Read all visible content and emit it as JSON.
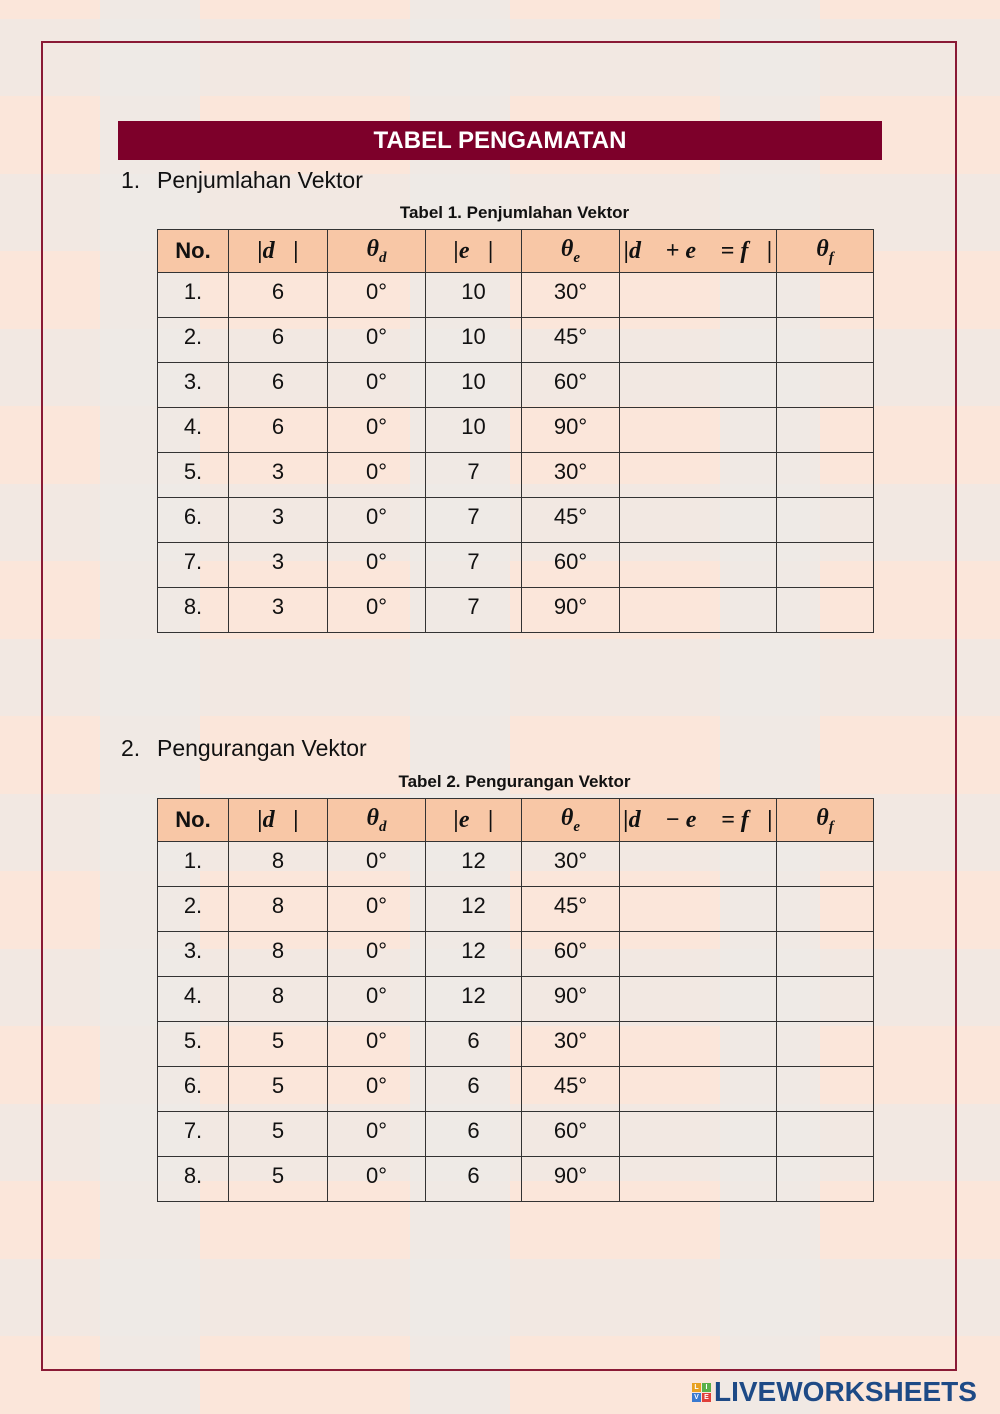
{
  "title": "TABEL PENGAMATAN",
  "sections": [
    {
      "number": "1.",
      "heading": "Penjumlahan Vektor",
      "caption": "Tabel 1. Penjumlahan Vektor",
      "headers": [
        "No.",
        "|d⃗|",
        "θ",
        "d",
        "|e⃗|",
        "θ",
        "e",
        "|d⃗ + e⃗ = f⃗|",
        "θ",
        "f"
      ],
      "rows": [
        [
          "1.",
          "6",
          "0°",
          "10",
          "30°"
        ],
        [
          "2.",
          "6",
          "0°",
          "10",
          "45°"
        ],
        [
          "3.",
          "6",
          "0°",
          "10",
          "60°"
        ],
        [
          "4.",
          "6",
          "0°",
          "10",
          "90°"
        ],
        [
          "5.",
          "3",
          "0°",
          "7",
          "30°"
        ],
        [
          "6.",
          "3",
          "0°",
          "7",
          "45°"
        ],
        [
          "7.",
          "3",
          "0°",
          "7",
          "60°"
        ],
        [
          "8.",
          "3",
          "0°",
          "7",
          "90°"
        ]
      ]
    },
    {
      "number": "2.",
      "heading": "Pengurangan Vektor",
      "caption": "Tabel 2. Pengurangan Vektor",
      "headers": [
        "No.",
        "|d⃗|",
        "θ",
        "d",
        "|e⃗|",
        "θ",
        "e",
        "|d⃗ − e⃗ = f⃗|",
        "θ",
        "f"
      ],
      "rows": [
        [
          "1.",
          "8",
          "0°",
          "12",
          "30°"
        ],
        [
          "2.",
          "8",
          "0°",
          "12",
          "45°"
        ],
        [
          "3.",
          "8",
          "0°",
          "12",
          "60°"
        ],
        [
          "4.",
          "8",
          "0°",
          "12",
          "90°"
        ],
        [
          "5.",
          "5",
          "0°",
          "6",
          "30°"
        ],
        [
          "6.",
          "5",
          "0°",
          "6",
          "45°"
        ],
        [
          "7.",
          "5",
          "0°",
          "6",
          "60°"
        ],
        [
          "8.",
          "5",
          "0°",
          "6",
          "90°"
        ]
      ]
    }
  ],
  "logo": {
    "text": "LIVEWORKSHEETS",
    "letters": [
      "L",
      "I",
      "V",
      "E"
    ]
  },
  "colors": {
    "banner": "#7d002a",
    "header_fill": "#f8c7a6",
    "frame": "#8a1a35",
    "logo": "#1d4a86"
  }
}
